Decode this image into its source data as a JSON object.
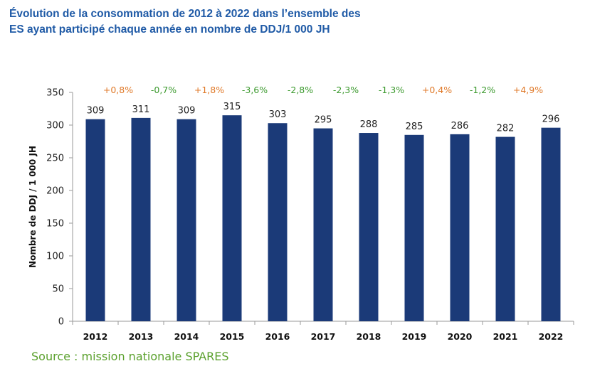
{
  "title_line1": "Évolution de la consommation de 2012 à 2022 dans l’ensemble des",
  "title_line2": "ES ayant participé chaque année en nombre de DDJ/1 000 JH",
  "source": "Source : mission nationale SPARES",
  "colors": {
    "bar": "#1b3a78",
    "increase": "#e07a2a",
    "decrease": "#3c9a2e",
    "title": "#1f5aa6",
    "source": "#5aa02c"
  },
  "chart_data": {
    "type": "bar",
    "title": "Évolution de la consommation de 2012 à 2022 dans l’ensemble des ES ayant participé chaque année en nombre de DDJ/1 000 JH",
    "xlabel": "",
    "ylabel": "Nombre de DDJ / 1 000 JH",
    "ylim": [
      0,
      350
    ],
    "yticks": [
      0,
      50,
      100,
      150,
      200,
      250,
      300,
      350
    ],
    "categories": [
      "2012",
      "2013",
      "2014",
      "2015",
      "2016",
      "2017",
      "2018",
      "2019",
      "2020",
      "2021",
      "2022"
    ],
    "values": [
      309,
      311,
      309,
      315,
      303,
      295,
      288,
      285,
      286,
      282,
      296
    ],
    "annotations": [
      {
        "between": [
          "2012",
          "2013"
        ],
        "text": "+0,8%",
        "direction": "up"
      },
      {
        "between": [
          "2013",
          "2014"
        ],
        "text": "-0,7%",
        "direction": "down"
      },
      {
        "between": [
          "2014",
          "2015"
        ],
        "text": "+1,8%",
        "direction": "up"
      },
      {
        "between": [
          "2015",
          "2016"
        ],
        "text": "-3,6%",
        "direction": "down"
      },
      {
        "between": [
          "2016",
          "2017"
        ],
        "text": "-2,8%",
        "direction": "down"
      },
      {
        "between": [
          "2017",
          "2018"
        ],
        "text": "-2,3%",
        "direction": "down"
      },
      {
        "between": [
          "2018",
          "2019"
        ],
        "text": "-1,3%",
        "direction": "down"
      },
      {
        "between": [
          "2019",
          "2020"
        ],
        "text": "+0,4%",
        "direction": "up"
      },
      {
        "between": [
          "2020",
          "2021"
        ],
        "text": "-1,2%",
        "direction": "down"
      },
      {
        "between": [
          "2021",
          "2022"
        ],
        "text": "+4,9%",
        "direction": "up"
      }
    ],
    "grid": false,
    "legend": "none"
  }
}
